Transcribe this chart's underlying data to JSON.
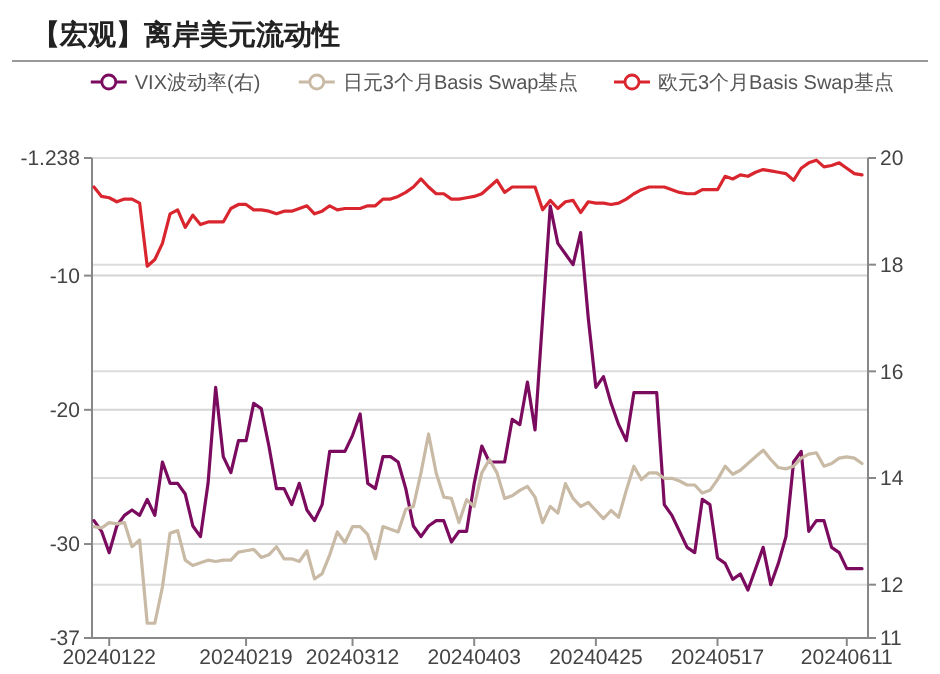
{
  "chart_data": {
    "type": "line",
    "title": "【宏观】离岸美元流动性",
    "categories": [
      null,
      null,
      "20240122",
      null,
      null,
      null,
      null,
      null,
      null,
      null,
      null,
      null,
      null,
      null,
      null,
      null,
      null,
      null,
      null,
      null,
      "20240219",
      null,
      null,
      null,
      null,
      null,
      null,
      null,
      null,
      null,
      null,
      null,
      null,
      null,
      "20240312",
      null,
      null,
      null,
      null,
      null,
      null,
      null,
      null,
      null,
      null,
      null,
      null,
      null,
      null,
      null,
      "20240403",
      null,
      null,
      null,
      null,
      null,
      null,
      null,
      null,
      null,
      null,
      null,
      null,
      null,
      null,
      null,
      "20240425",
      null,
      null,
      null,
      null,
      null,
      null,
      null,
      null,
      null,
      null,
      null,
      null,
      null,
      null,
      null,
      "20240517",
      null,
      null,
      null,
      null,
      null,
      null,
      null,
      null,
      null,
      null,
      null,
      null,
      null,
      null,
      null,
      null,
      "20240611",
      null,
      null
    ],
    "series": [
      {
        "name": "VIX波动率(右)",
        "color": "#7a0b5e",
        "axis": "y2",
        "values": [
          13.2,
          13.0,
          12.6,
          13.1,
          13.3,
          13.4,
          13.3,
          13.6,
          13.3,
          14.3,
          13.9,
          13.9,
          13.7,
          13.1,
          12.9,
          13.9,
          15.7,
          14.4,
          14.1,
          14.7,
          14.7,
          15.4,
          15.3,
          14.6,
          13.8,
          13.8,
          13.5,
          13.9,
          13.4,
          13.2,
          13.5,
          14.5,
          14.5,
          14.5,
          14.8,
          15.2,
          13.9,
          13.8,
          14.4,
          14.4,
          14.3,
          13.8,
          13.1,
          12.9,
          13.1,
          13.2,
          13.2,
          12.8,
          13.0,
          13.0,
          13.9,
          14.6,
          14.3,
          14.3,
          14.3,
          15.1,
          15.0,
          15.8,
          14.9,
          17.0,
          19.1,
          18.4,
          18.2,
          18.0,
          18.6,
          17.0,
          15.7,
          15.9,
          15.4,
          15.0,
          14.7,
          15.6,
          15.6,
          15.6,
          15.6,
          13.5,
          13.3,
          13.0,
          12.7,
          12.6,
          13.6,
          13.5,
          12.5,
          12.4,
          12.1,
          12.2,
          11.9,
          12.3,
          12.7,
          12.0,
          12.4,
          12.9,
          14.3,
          14.5,
          13.0,
          13.2,
          13.2,
          12.7,
          12.6,
          12.3,
          12.3,
          12.3
        ]
      },
      {
        "name": "日元3个月Basis Swap基点",
        "color": "#c9baa6",
        "values": [
          -28.7,
          -28.8,
          -28.4,
          -28.5,
          -28.4,
          -30.2,
          -29.7,
          -35.9,
          -35.9,
          -33.2,
          -29.2,
          -29.0,
          -31.2,
          -31.6,
          -31.4,
          -31.2,
          -31.3,
          -31.2,
          -31.2,
          -30.6,
          -30.5,
          -30.4,
          -31.0,
          -30.8,
          -30.2,
          -31.1,
          -31.1,
          -31.3,
          -30.5,
          -32.6,
          -32.2,
          -30.8,
          -29.1,
          -29.9,
          -28.7,
          -28.7,
          -29.3,
          -31.1,
          -28.7,
          -28.9,
          -29.1,
          -27.4,
          -27.2,
          -24.7,
          -21.8,
          -24.7,
          -26.5,
          -26.6,
          -28.4,
          -26.7,
          -27.2,
          -24.7,
          -23.7,
          -24.7,
          -26.6,
          -26.4,
          -26.0,
          -25.7,
          -26.5,
          -28.4,
          -27.2,
          -27.7,
          -25.5,
          -26.6,
          -27.2,
          -26.9,
          -27.5,
          -28.1,
          -27.5,
          -28.0,
          -26.0,
          -24.2,
          -25.2,
          -24.7,
          -24.7,
          -25.1,
          -25.1,
          -25.3,
          -25.6,
          -25.6,
          -26.2,
          -26.0,
          -25.2,
          -24.2,
          -24.8,
          -24.5,
          -24.0,
          -23.5,
          -23.0,
          -23.7,
          -24.3,
          -24.4,
          -24.2,
          -23.6,
          -23.3,
          -23.2,
          -24.2,
          -24.0,
          -23.6,
          -23.5,
          -23.6,
          -24.0
        ]
      },
      {
        "name": "欧元3个月Basis Swap基点",
        "color": "#d9262e",
        "values": [
          -3.4,
          -4.1,
          -4.2,
          -4.5,
          -4.3,
          -4.3,
          -4.6,
          -9.3,
          -8.8,
          -7.6,
          -5.4,
          -5.1,
          -6.4,
          -5.5,
          -6.2,
          -6.0,
          -6.0,
          -6.0,
          -5.0,
          -4.7,
          -4.7,
          -5.1,
          -5.1,
          -5.2,
          -5.4,
          -5.2,
          -5.2,
          -5.0,
          -4.8,
          -5.4,
          -5.2,
          -4.8,
          -5.1,
          -5.0,
          -5.0,
          -5.0,
          -4.8,
          -4.8,
          -4.3,
          -4.3,
          -4.1,
          -3.8,
          -3.4,
          -2.8,
          -3.4,
          -3.9,
          -3.9,
          -4.3,
          -4.3,
          -4.2,
          -4.1,
          -3.9,
          -3.4,
          -2.9,
          -3.8,
          -3.4,
          -3.4,
          -3.4,
          -3.4,
          -5.1,
          -4.4,
          -5.0,
          -4.5,
          -4.4,
          -5.3,
          -4.5,
          -4.6,
          -4.6,
          -4.7,
          -4.6,
          -4.3,
          -3.9,
          -3.6,
          -3.4,
          -3.4,
          -3.4,
          -3.6,
          -3.8,
          -3.9,
          -3.9,
          -3.6,
          -3.6,
          -3.6,
          -2.6,
          -2.8,
          -2.5,
          -2.6,
          -2.3,
          -2.1,
          -2.2,
          -2.3,
          -2.4,
          -2.9,
          -2.0,
          -1.6,
          -1.4,
          -1.9,
          -1.8,
          -1.6,
          -2.0,
          -2.4,
          -2.5
        ]
      }
    ],
    "ylim": [
      -37,
      -1.238
    ],
    "yticks": [
      -1.238,
      -10,
      -20,
      -30,
      -37
    ],
    "y2lim": [
      11,
      20
    ],
    "y2ticks": [
      11,
      12,
      14,
      16,
      18,
      20
    ],
    "grid": "y",
    "legend": "top",
    "line_style": "solid"
  }
}
